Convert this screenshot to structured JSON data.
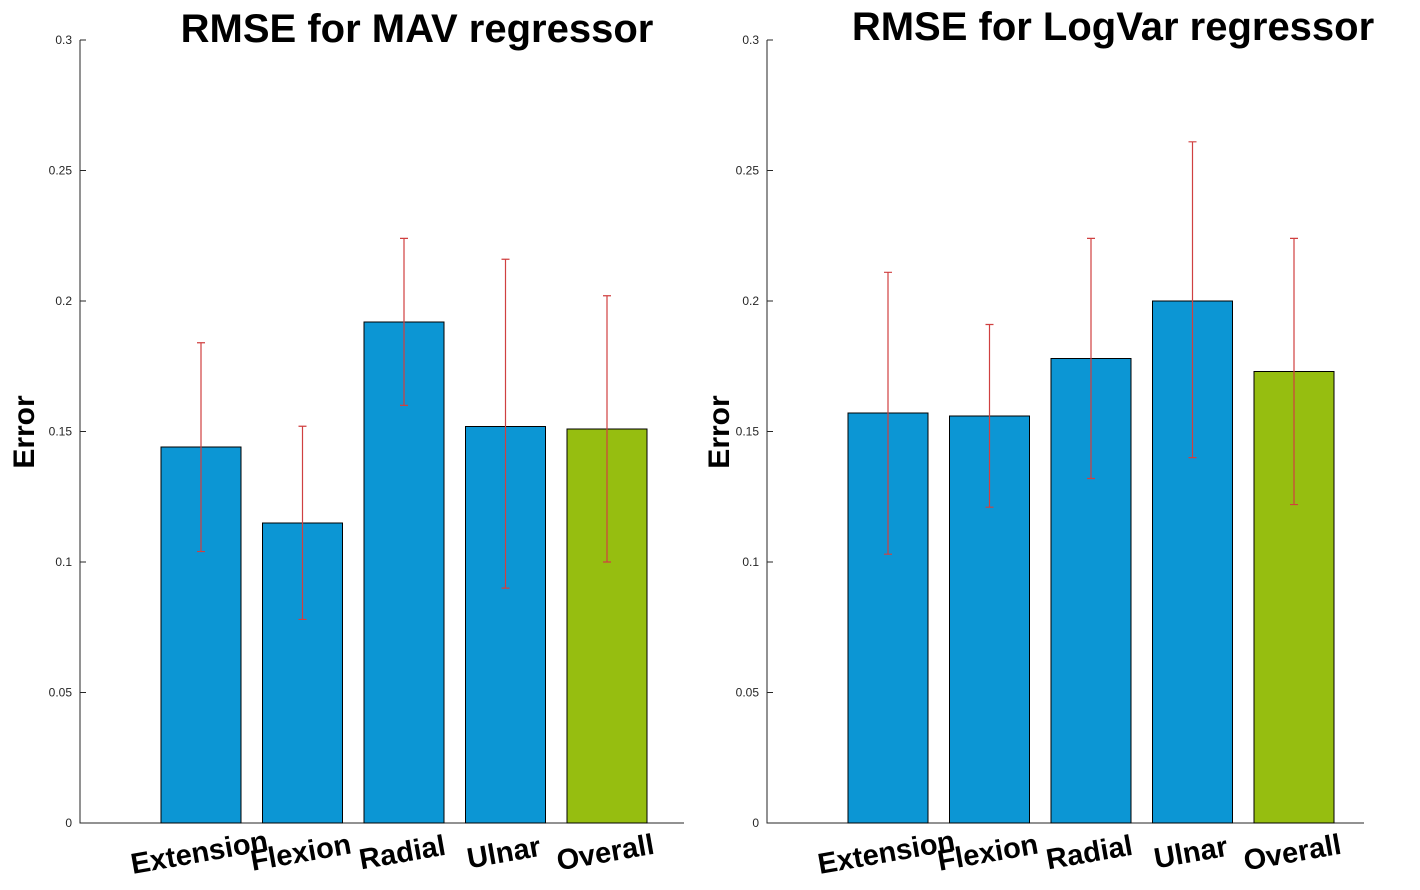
{
  "chart_data": [
    {
      "type": "bar",
      "title": "RMSE for MAV regressor",
      "ylabel": "Error",
      "xlabel": "",
      "ylim": [
        0,
        0.3
      ],
      "yticks": [
        "0",
        "0.05",
        "0.1",
        "0.15",
        "0.2",
        "0.25",
        "0.3"
      ],
      "categories": [
        "Extension",
        "Flexion",
        "Radial",
        "Ulnar",
        "Overall"
      ],
      "values": [
        0.144,
        0.115,
        0.192,
        0.152,
        0.151
      ],
      "error_low": [
        0.104,
        0.078,
        0.16,
        0.09,
        0.1
      ],
      "error_high": [
        0.184,
        0.152,
        0.224,
        0.216,
        0.202
      ],
      "colors": [
        "#0C96D4",
        "#0C96D4",
        "#0C96D4",
        "#0C96D4",
        "#96BE10"
      ],
      "errorbar_color": "#D04040",
      "grid": false
    },
    {
      "type": "bar",
      "title": "RMSE for LogVar regressor",
      "ylabel": "Error",
      "xlabel": "",
      "ylim": [
        0,
        0.3
      ],
      "yticks": [
        "0",
        "0.05",
        "0.1",
        "0.15",
        "0.2",
        "0.25",
        "0.3"
      ],
      "categories": [
        "Extension",
        "Flexion",
        "Radial",
        "Ulnar",
        "Overall"
      ],
      "values": [
        0.157,
        0.156,
        0.178,
        0.2,
        0.173
      ],
      "error_low": [
        0.103,
        0.121,
        0.132,
        0.14,
        0.122
      ],
      "error_high": [
        0.211,
        0.191,
        0.224,
        0.261,
        0.224
      ],
      "colors": [
        "#0C96D4",
        "#0C96D4",
        "#0C96D4",
        "#0C96D4",
        "#96BE10"
      ],
      "errorbar_color": "#D04040",
      "grid": false
    }
  ]
}
